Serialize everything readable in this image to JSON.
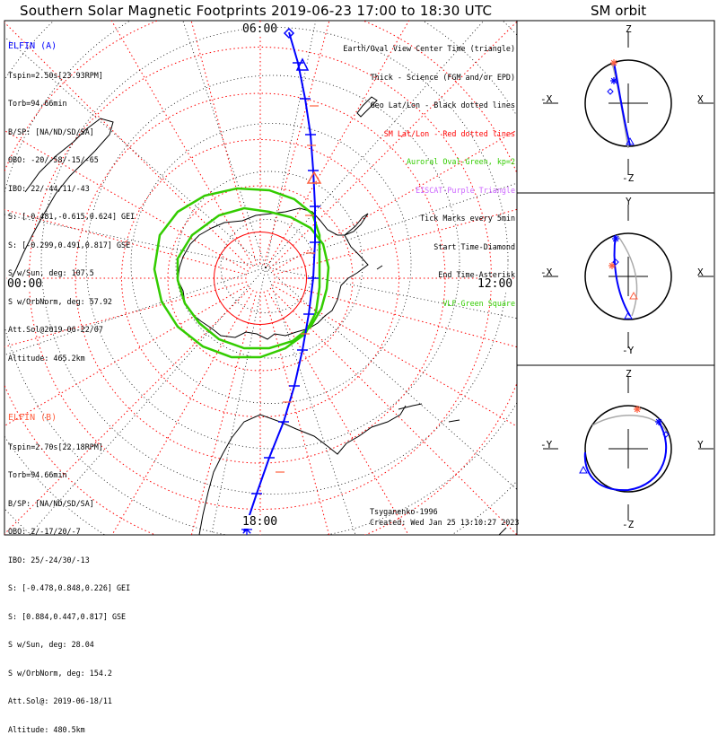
{
  "header": {
    "title": "Southern Solar Magnetic Footprints 2019-06-23 17:00 to 18:30 UTC",
    "orbit_title": "SM orbit"
  },
  "spacecraft_a": {
    "name": "ELFIN (A)",
    "color": "#0000ff",
    "lines": [
      "Tspin=2.50s[23.93RPM]",
      "Torb=94.66min",
      "B/SP: [NA/ND/SD/SA]",
      "OBO: -20/-58/-15/-65",
      "IBO: 22/-44/11/-43",
      "S: [-0.481,-0.615,0.624] GEI",
      "S: [-0.299,0.491,0.817] GSE",
      "S w/Sun, deg: 107.5",
      "S w/OrbNorm, deg: 57.92",
      "Att.Sol@2019-06-22/07",
      "Altitude: 465.2km"
    ]
  },
  "spacecraft_b": {
    "name": "ELFIN (B)",
    "color": "#ff6040",
    "lines": [
      "Tspin=2.70s[22.18RPM]",
      "Torb=94.66min",
      "B/SP: [NA/ND/SD/SA]",
      "OBO: 2/-17/20/-7",
      "IBO: 25/-24/30/-13",
      "S: [-0.478,0.848,0.226] GEI",
      "S: [0.884,0.447,0.817] GSE",
      "S w/Sun, deg: 28.04",
      "S w/OrbNorm, deg: 154.2",
      "Att.Sol@: 2019-06-18/11",
      "Altitude: 480.5km"
    ]
  },
  "legend": [
    {
      "text": "Earth/Oval View Center Time (triangle)",
      "color": "#000000"
    },
    {
      "text": "Thick - Science (FGM and/or EPD)",
      "color": "#000000"
    },
    {
      "text": "Geo Lat/Lon - Black dotted lines",
      "color": "#000000"
    },
    {
      "text": "SM Lat/Lon - Red dotted lines",
      "color": "#ff0000"
    },
    {
      "text": "Auroral Oval-Green, kp=2",
      "color": "#33cc00"
    },
    {
      "text": "EISCAT-Purple Triangle",
      "color": "#cc66ff"
    },
    {
      "text": "Tick Marks every 5min",
      "color": "#000000"
    },
    {
      "text": "Start Time-Diamond",
      "color": "#000000"
    },
    {
      "text": "End Time-Asterisk",
      "color": "#000000"
    },
    {
      "text": "VLF-Green Square",
      "color": "#33cc00"
    }
  ],
  "mlt_labels": {
    "top": "06:00",
    "left": "00:00",
    "right": "12:00",
    "bottom": "18:00"
  },
  "credits": {
    "author": "Tsyganenko-1996",
    "created": "Created: Wed Jan 25 13:10:27 2023"
  },
  "orbit_panels": [
    {
      "top": "Z",
      "bottom": "-Z",
      "left": "-X",
      "right": "X"
    },
    {
      "top": "Y",
      "bottom": "-Y",
      "left": "-X",
      "right": "X"
    },
    {
      "top": "Z",
      "bottom": "-Z",
      "left": "-Y",
      "right": "Y"
    }
  ],
  "colors": {
    "track_a": "#0000ff",
    "track_b": "#ff6040",
    "sm_grid": "#ff0000",
    "geo_grid": "#000000",
    "oval": "#33cc00"
  },
  "chart_data": {
    "type": "polar-map",
    "title": "Southern Solar Magnetic Footprints 2019-06-23 17:00 to 18:30 UTC",
    "projection": "south polar, solar-magnetic coordinates, MLT clock",
    "sm_latitude_rings_deg": [
      -90,
      -80,
      -70,
      -60,
      -50,
      -40,
      -30
    ],
    "mlt_axis_labels": [
      "00:00",
      "06:00",
      "12:00",
      "18:00"
    ],
    "auroral_oval_kp": 2,
    "track_a_mlt": 6.0,
    "track_a_sm_lat_range": [
      -45,
      -85
    ],
    "field_model": "Tsyganenko-1996"
  }
}
